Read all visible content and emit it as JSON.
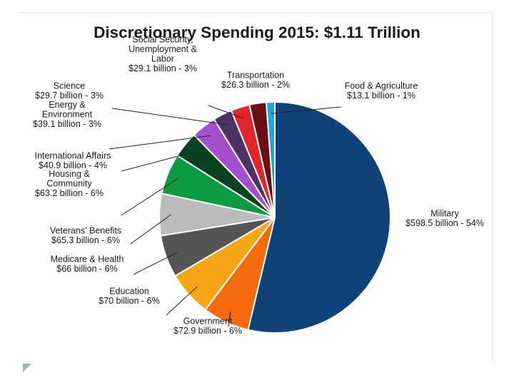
{
  "chart_data": {
    "type": "pie",
    "title": "Discretionary Spending 2015: $1.11 Trillion",
    "slices": [
      {
        "name": "Military",
        "value": 598.5,
        "percent": 54,
        "color": "#10427a",
        "label_lines": [
          "Military",
          "$598.5 billion - 54%"
        ]
      },
      {
        "name": "Government",
        "value": 72.9,
        "percent": 6,
        "color": "#f56a0c",
        "label_lines": [
          "Government",
          "$72.9 billion - 6%"
        ]
      },
      {
        "name": "Education",
        "value": 70,
        "percent": 6,
        "color": "#f7a716",
        "label_lines": [
          "Education",
          "$70 billion - 6%"
        ]
      },
      {
        "name": "Medicare & Health",
        "value": 66,
        "percent": 6,
        "color": "#555555",
        "label_lines": [
          "Medicare & Health",
          "$66 billion - 6%"
        ]
      },
      {
        "name": "Veterans' Benefits",
        "value": 65.3,
        "percent": 6,
        "color": "#bcbcbc",
        "label_lines": [
          "Veterans' Benefits",
          "$65.3 billion - 6%"
        ]
      },
      {
        "name": "Housing & Community",
        "value": 63.2,
        "percent": 6,
        "color": "#0c9b40",
        "label_lines": [
          "Housing &",
          "Community",
          "$63.2 billion - 6%"
        ]
      },
      {
        "name": "International Affairs",
        "value": 40.9,
        "percent": 4,
        "color": "#0b4322",
        "label_lines": [
          "International Affairs",
          "$40.9 billion - 4%"
        ]
      },
      {
        "name": "Energy & Environment",
        "value": 39.1,
        "percent": 3,
        "color": "#a44fcc",
        "label_lines": [
          "Energy &",
          "Environment",
          "$39.1 billion - 3%"
        ]
      },
      {
        "name": "Science",
        "value": 29.7,
        "percent": 3,
        "color": "#4c3364",
        "label_lines": [
          "Science",
          "$29.7 billion - 3%"
        ]
      },
      {
        "name": "Social Security, Unemployment & Labor",
        "value": 29.1,
        "percent": 3,
        "color": "#e3242b",
        "label_lines": [
          "Social Security,",
          "Unemployment &",
          "Labor",
          "$29.1 billion - 3%"
        ]
      },
      {
        "name": "Transportation",
        "value": 26.3,
        "percent": 2,
        "color": "#6a1012",
        "label_lines": [
          "Transportation",
          "$26.3 billion - 2%"
        ]
      },
      {
        "name": "Food & Agriculture",
        "value": 13.1,
        "percent": 1,
        "color": "#1ba7e3",
        "label_lines": [
          "Food & Agriculture",
          "$13.1 billion - 1%"
        ]
      }
    ]
  }
}
